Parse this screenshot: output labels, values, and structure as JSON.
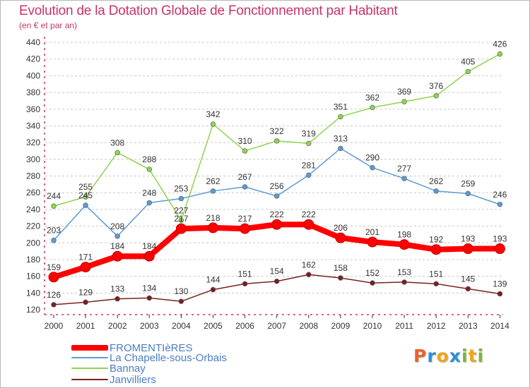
{
  "title": "Evolution de la Dotation Globale de Fonctionnement par Habitant",
  "subtitle": "(en € et par an)",
  "logo": {
    "text": "Proxiti",
    "letters": [
      "P",
      "r",
      "o",
      "x",
      "i",
      "t",
      "i"
    ],
    "colors": [
      "#e8622b",
      "#2f8ed6",
      "#f2a31a",
      "#2f8ed6",
      "#7ab833",
      "#f2a31a",
      "#7ab833"
    ]
  },
  "colors": {
    "title": "#c8336a",
    "axis": "#c8336a",
    "grid": "#c8c8c8",
    "legend_text": "#4a7ec2"
  },
  "chart_data": {
    "type": "line",
    "title": "Evolution de la Dotation Globale de Fonctionnement par Habitant",
    "subtitle": "(en € et par an)",
    "categories": [
      "2000",
      "2001",
      "2002",
      "2003",
      "2004",
      "2005",
      "2006",
      "2007",
      "2008",
      "2009",
      "2010",
      "2011",
      "2012",
      "2013",
      "2014"
    ],
    "ylim": [
      120,
      440
    ],
    "yticks": [
      120,
      140,
      160,
      180,
      200,
      220,
      240,
      260,
      280,
      300,
      320,
      340,
      360,
      380,
      400,
      420,
      440
    ],
    "grid": "horizontal dashed",
    "legend_position": "bottom-left",
    "series": [
      {
        "name": "FROMENTIèRES",
        "color": "#ff0000",
        "values": [
          159,
          171,
          184,
          184,
          217,
          218,
          217,
          222,
          222,
          206,
          201,
          198,
          192,
          193,
          193
        ],
        "labels": [
          "159",
          "171",
          "184",
          "184",
          "217",
          "218",
          "217",
          "222",
          "222",
          "206",
          "201",
          "198",
          "192",
          "193",
          "193"
        ]
      },
      {
        "name": "La Chapelle-sous-Orbais",
        "color": "#5b9bd5",
        "values": [
          203,
          245,
          208,
          248,
          253,
          262,
          267,
          256,
          281,
          313,
          290,
          277,
          262,
          259,
          246
        ],
        "labels": [
          "203",
          "245",
          "208",
          "248",
          "253",
          "262",
          "267",
          "256",
          "281",
          "313",
          "290",
          "277",
          "262",
          "259",
          "246"
        ]
      },
      {
        "name": "Bannay",
        "color": "#8fd44e",
        "values": [
          244,
          255,
          308,
          288,
          227,
          342,
          310,
          322,
          319,
          351,
          362,
          369,
          376,
          405,
          426
        ],
        "labels": [
          "244",
          "255",
          "308",
          "288",
          "227",
          "342",
          "310",
          "322",
          "319",
          "351",
          "362",
          "369",
          "376",
          "405",
          "426"
        ]
      },
      {
        "name": "Janvilliers",
        "color": "#7a1f1f",
        "values": [
          126,
          129,
          133,
          134,
          130,
          144,
          151,
          154,
          162,
          158,
          152,
          153,
          151,
          145,
          139
        ],
        "labels": [
          "126",
          "129",
          "133",
          "134",
          "130",
          "144",
          "151",
          "154",
          "162",
          "158",
          "152",
          "153",
          "151",
          "145",
          "139"
        ]
      }
    ]
  }
}
